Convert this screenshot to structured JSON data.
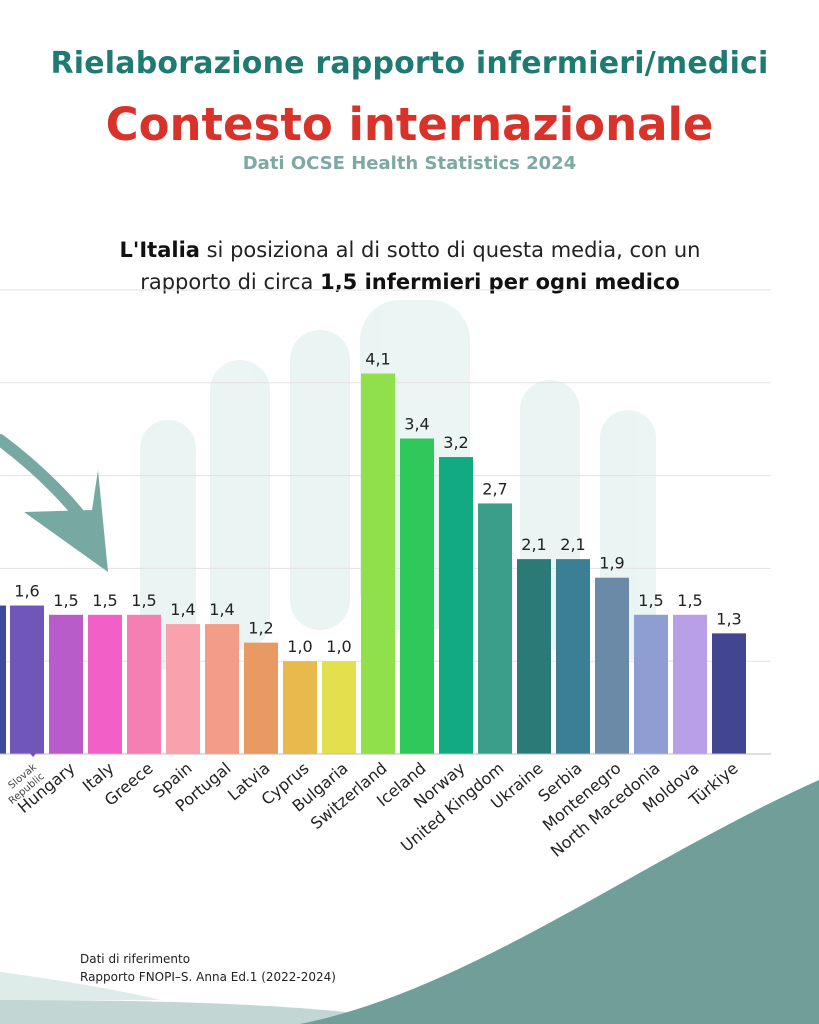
{
  "header": {
    "title": "Rielaborazione rapporto infermieri/medici",
    "headline": "Contesto internazionale",
    "source_line": "Dati OCSE Health Statistics 2024"
  },
  "subtitle": {
    "part1_bold": "L'Italia",
    "part2": " si posiziona al di sotto di questa media, con un rapporto di circa ",
    "part3_bold": "1,5 infermieri per ogni medico"
  },
  "footer": {
    "line1": "Dati di riferimento",
    "line2": "Rapporto FNOPI–S. Anna Ed.1 (2022-2024)"
  },
  "colors": {
    "title": "#1f7a72",
    "headline": "#d9322a",
    "source": "#7da8a3",
    "arrow": "#77a8a2",
    "wave": "#6f9f98"
  },
  "icons": [
    "curved-arrow-icon",
    "hand-watermark-icon"
  ],
  "chart_data": {
    "type": "bar",
    "categories": [
      "Slovak Republic",
      "Hungary",
      "Italy",
      "Greece",
      "Spain",
      "Portugal",
      "Latvia",
      "Cyprus",
      "Bulgaria",
      "Switzerland",
      "Iceland",
      "Norway",
      "United Kingdom",
      "Ukraine",
      "Serbia",
      "Montenegro",
      "North Macedonia",
      "Moldova",
      "Türkiye"
    ],
    "values": [
      1.6,
      1.5,
      1.5,
      1.5,
      1.4,
      1.4,
      1.2,
      1.0,
      1.0,
      4.1,
      3.4,
      3.2,
      2.7,
      2.1,
      2.1,
      1.9,
      1.5,
      1.5,
      1.3
    ],
    "value_labels": [
      "1,6",
      "1,5",
      "1,5",
      "1,5",
      "1,4",
      "1,4",
      "1,2",
      "1,0",
      "1,0",
      "4,1",
      "3,4",
      "3,2",
      "2,7",
      "2,1",
      "2,1",
      "1,9",
      "1,5",
      "1,5",
      "1,3"
    ],
    "bar_colors": [
      "#6f56b8",
      "#b85cc9",
      "#f25fc6",
      "#f57fb3",
      "#f9a2ad",
      "#f39c8a",
      "#e99a62",
      "#e8b94c",
      "#e3e04e",
      "#8fe04a",
      "#2ec95a",
      "#12aa80",
      "#3b9e8b",
      "#2c7a78",
      "#3a7f94",
      "#6b8aa8",
      "#8f9ed2",
      "#b9a0e6",
      "#424590"
    ],
    "clipped_bar": {
      "value": 1.6,
      "color": "#3e4aa0"
    },
    "ylim": [
      0,
      5
    ],
    "grid": true,
    "xlabel": "",
    "ylabel": ""
  }
}
